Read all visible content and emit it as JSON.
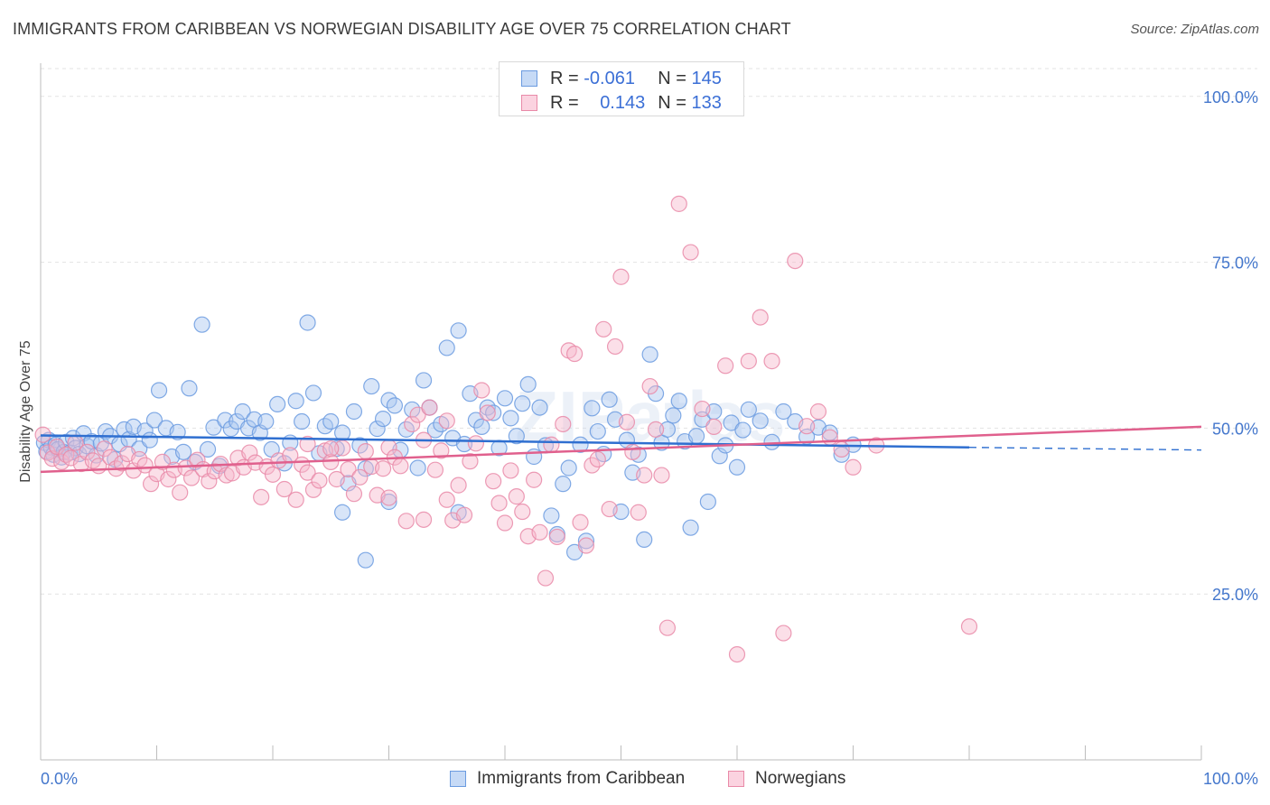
{
  "title": "IMMIGRANTS FROM CARIBBEAN VS NORWEGIAN DISABILITY AGE OVER 75 CORRELATION CHART",
  "source": "Source: ZipAtlas.com",
  "watermark": "ZIPatlas",
  "legend": {
    "r_label": "R =",
    "n_label": "N =",
    "series": [
      {
        "r": "-0.061",
        "n": "145",
        "color": "#a9c6f0",
        "border": "#6b9be0"
      },
      {
        "r": "0.143",
        "n": "133",
        "color": "#f6b9cd",
        "border": "#e98aa8"
      }
    ]
  },
  "bottom_legend": [
    "Immigrants from Caribbean",
    "Norwegians"
  ],
  "chart_data": {
    "type": "scatter",
    "title": "IMMIGRANTS FROM CARIBBEAN VS NORWEGIAN DISABILITY AGE OVER 75 CORRELATION CHART",
    "xlabel": "",
    "ylabel": "Disability Age Over 75",
    "xlim": [
      0,
      100
    ],
    "ylim": [
      0,
      105
    ],
    "x_tick_labels": [
      "0.0%",
      "100.0%"
    ],
    "y_tick_labels": [
      "25.0%",
      "50.0%",
      "75.0%",
      "100.0%"
    ],
    "y_ticks": [
      25,
      50,
      75,
      100
    ],
    "grid": true,
    "legend_position": "top-center",
    "series": [
      {
        "name": "Immigrants from Caribbean",
        "color": "#6b9be0",
        "fill": "#a9c6f0",
        "trend": {
          "x0": 0,
          "y0": 48.9,
          "x1": 80,
          "y1": 47.1,
          "dashed_to": 100,
          "dashed_y": 46.7
        },
        "points": [
          [
            0.3,
            47.8
          ],
          [
            0.5,
            46.5
          ],
          [
            0.7,
            48.2
          ],
          [
            0.9,
            47.1
          ],
          [
            1.1,
            46.0
          ],
          [
            1.3,
            47.5
          ],
          [
            1.5,
            46.8
          ],
          [
            1.8,
            45.6
          ],
          [
            2.0,
            46.4
          ],
          [
            2.2,
            47.9
          ],
          [
            2.5,
            46.3
          ],
          [
            2.8,
            48.5
          ],
          [
            3.0,
            47.0
          ],
          [
            3.3,
            46.1
          ],
          [
            3.7,
            49.2
          ],
          [
            4.0,
            47.3
          ],
          [
            4.4,
            48.0
          ],
          [
            4.8,
            45.9
          ],
          [
            5.2,
            47.7
          ],
          [
            5.6,
            49.5
          ],
          [
            6.0,
            48.8
          ],
          [
            6.4,
            45.3
          ],
          [
            6.8,
            47.6
          ],
          [
            7.2,
            49.8
          ],
          [
            7.6,
            48.3
          ],
          [
            8.0,
            50.2
          ],
          [
            8.5,
            46.9
          ],
          [
            9.0,
            49.6
          ],
          [
            9.4,
            48.2
          ],
          [
            9.8,
            51.2
          ],
          [
            10.2,
            55.7
          ],
          [
            10.8,
            50.0
          ],
          [
            11.3,
            45.7
          ],
          [
            11.8,
            49.4
          ],
          [
            12.3,
            46.4
          ],
          [
            12.8,
            56.0
          ],
          [
            13.3,
            44.9
          ],
          [
            13.9,
            65.6
          ],
          [
            14.4,
            46.8
          ],
          [
            14.9,
            50.1
          ],
          [
            15.4,
            44.3
          ],
          [
            15.9,
            51.2
          ],
          [
            16.4,
            49.9
          ],
          [
            16.9,
            51.0
          ],
          [
            17.4,
            52.5
          ],
          [
            17.9,
            50.0
          ],
          [
            18.4,
            51.3
          ],
          [
            18.9,
            49.3
          ],
          [
            19.4,
            51.0
          ],
          [
            19.9,
            46.8
          ],
          [
            20.4,
            53.6
          ],
          [
            21.0,
            44.7
          ],
          [
            21.5,
            47.8
          ],
          [
            22.0,
            54.1
          ],
          [
            22.5,
            51.0
          ],
          [
            23.0,
            65.9
          ],
          [
            23.5,
            55.3
          ],
          [
            24.0,
            46.2
          ],
          [
            24.5,
            50.3
          ],
          [
            25.0,
            51.0
          ],
          [
            25.5,
            46.9
          ],
          [
            26.0,
            49.3
          ],
          [
            26.5,
            41.7
          ],
          [
            27.0,
            52.5
          ],
          [
            27.5,
            47.4
          ],
          [
            28.0,
            43.9
          ],
          [
            28.5,
            56.3
          ],
          [
            29.0,
            49.9
          ],
          [
            29.5,
            51.4
          ],
          [
            30.0,
            54.2
          ],
          [
            30.5,
            53.4
          ],
          [
            31.0,
            46.7
          ],
          [
            31.5,
            49.8
          ],
          [
            32.0,
            52.8
          ],
          [
            32.5,
            44.0
          ],
          [
            33.0,
            57.2
          ],
          [
            33.5,
            53.1
          ],
          [
            34.0,
            49.7
          ],
          [
            34.5,
            50.6
          ],
          [
            35.0,
            62.1
          ],
          [
            35.5,
            48.5
          ],
          [
            36.0,
            64.7
          ],
          [
            36.5,
            47.6
          ],
          [
            37.0,
            55.2
          ],
          [
            37.5,
            51.2
          ],
          [
            38.0,
            50.2
          ],
          [
            38.5,
            53.1
          ],
          [
            39.0,
            52.3
          ],
          [
            39.5,
            47.0
          ],
          [
            40.0,
            54.5
          ],
          [
            40.5,
            51.5
          ],
          [
            41.0,
            48.8
          ],
          [
            41.5,
            53.7
          ],
          [
            42.0,
            56.6
          ],
          [
            42.5,
            45.7
          ],
          [
            43.0,
            53.1
          ],
          [
            43.5,
            47.4
          ],
          [
            44.0,
            36.8
          ],
          [
            44.5,
            34.0
          ],
          [
            45.0,
            41.6
          ],
          [
            45.5,
            44.0
          ],
          [
            46.0,
            31.3
          ],
          [
            46.5,
            47.5
          ],
          [
            47.0,
            33.0
          ],
          [
            47.5,
            53.0
          ],
          [
            48.0,
            49.5
          ],
          [
            48.5,
            46.1
          ],
          [
            49.0,
            54.3
          ],
          [
            49.5,
            51.3
          ],
          [
            50.0,
            37.4
          ],
          [
            50.5,
            48.2
          ],
          [
            51.0,
            43.3
          ],
          [
            51.5,
            46.0
          ],
          [
            52.0,
            33.2
          ],
          [
            52.5,
            61.1
          ],
          [
            53.0,
            55.2
          ],
          [
            53.5,
            47.8
          ],
          [
            54.0,
            49.8
          ],
          [
            54.5,
            51.9
          ],
          [
            55.0,
            54.1
          ],
          [
            55.5,
            48.0
          ],
          [
            56.0,
            35.0
          ],
          [
            56.5,
            48.8
          ],
          [
            57.0,
            51.3
          ],
          [
            57.5,
            38.9
          ],
          [
            58.0,
            52.5
          ],
          [
            58.5,
            45.8
          ],
          [
            59.0,
            47.4
          ],
          [
            59.5,
            50.8
          ],
          [
            60.0,
            44.1
          ],
          [
            60.5,
            49.7
          ],
          [
            61.0,
            52.8
          ],
          [
            62.0,
            51.1
          ],
          [
            63.0,
            47.9
          ],
          [
            64.0,
            52.5
          ],
          [
            65.0,
            51.0
          ],
          [
            66.0,
            48.7
          ],
          [
            67.0,
            50.1
          ],
          [
            68.0,
            49.3
          ],
          [
            69.0,
            46.0
          ],
          [
            70.0,
            47.5
          ],
          [
            36.0,
            37.3
          ],
          [
            30.0,
            38.9
          ],
          [
            28.0,
            30.1
          ],
          [
            26.0,
            37.3
          ]
        ]
      },
      {
        "name": "Norwegians",
        "color": "#e98aa8",
        "fill": "#f6b9cd",
        "trend": {
          "x0": 0,
          "y0": 43.4,
          "x1": 100,
          "y1": 50.2
        },
        "points": [
          [
            0.2,
            49.0
          ],
          [
            0.6,
            46.3
          ],
          [
            1.0,
            45.4
          ],
          [
            1.4,
            47.2
          ],
          [
            1.8,
            44.9
          ],
          [
            2.2,
            46.0
          ],
          [
            2.6,
            45.5
          ],
          [
            3.0,
            47.8
          ],
          [
            3.5,
            44.6
          ],
          [
            4.0,
            46.4
          ],
          [
            4.5,
            45.1
          ],
          [
            5.0,
            44.3
          ],
          [
            5.5,
            46.9
          ],
          [
            6.0,
            45.6
          ],
          [
            6.5,
            43.9
          ],
          [
            7.0,
            44.7
          ],
          [
            7.5,
            46.1
          ],
          [
            8.0,
            43.6
          ],
          [
            8.5,
            45.3
          ],
          [
            9.0,
            44.4
          ],
          [
            9.5,
            41.6
          ],
          [
            10.0,
            43.1
          ],
          [
            10.5,
            44.9
          ],
          [
            11.0,
            42.3
          ],
          [
            11.5,
            43.7
          ],
          [
            12.0,
            40.3
          ],
          [
            12.5,
            44.0
          ],
          [
            13.0,
            42.5
          ],
          [
            13.5,
            45.2
          ],
          [
            14.0,
            43.8
          ],
          [
            14.5,
            42.0
          ],
          [
            15.0,
            43.5
          ],
          [
            15.5,
            44.6
          ],
          [
            16.0,
            42.9
          ],
          [
            16.5,
            43.2
          ],
          [
            17.0,
            45.5
          ],
          [
            17.5,
            44.1
          ],
          [
            18.0,
            46.3
          ],
          [
            18.5,
            44.8
          ],
          [
            19.0,
            39.6
          ],
          [
            19.5,
            44.2
          ],
          [
            20.0,
            43.0
          ],
          [
            20.5,
            45.1
          ],
          [
            21.0,
            40.8
          ],
          [
            21.5,
            45.9
          ],
          [
            22.0,
            39.2
          ],
          [
            22.5,
            44.5
          ],
          [
            23.0,
            43.3
          ],
          [
            23.5,
            40.7
          ],
          [
            24.0,
            42.1
          ],
          [
            24.5,
            46.6
          ],
          [
            25.0,
            44.9
          ],
          [
            25.5,
            42.3
          ],
          [
            26.0,
            47.0
          ],
          [
            26.5,
            43.8
          ],
          [
            27.0,
            40.1
          ],
          [
            27.5,
            42.6
          ],
          [
            28.0,
            46.5
          ],
          [
            28.5,
            44.2
          ],
          [
            29.0,
            39.9
          ],
          [
            29.5,
            43.9
          ],
          [
            30.0,
            47.1
          ],
          [
            30.5,
            45.6
          ],
          [
            31.0,
            44.3
          ],
          [
            31.5,
            36.0
          ],
          [
            32.0,
            50.6
          ],
          [
            32.5,
            52.0
          ],
          [
            33.0,
            48.2
          ],
          [
            33.5,
            53.1
          ],
          [
            34.0,
            43.7
          ],
          [
            34.5,
            46.6
          ],
          [
            35.0,
            39.2
          ],
          [
            35.5,
            36.1
          ],
          [
            36.0,
            41.4
          ],
          [
            36.5,
            36.9
          ],
          [
            37.0,
            45.0
          ],
          [
            37.5,
            47.7
          ],
          [
            38.0,
            55.7
          ],
          [
            38.5,
            52.3
          ],
          [
            39.0,
            42.0
          ],
          [
            39.5,
            38.7
          ],
          [
            40.0,
            35.7
          ],
          [
            40.5,
            43.6
          ],
          [
            41.0,
            39.7
          ],
          [
            41.5,
            37.4
          ],
          [
            42.0,
            33.7
          ],
          [
            42.5,
            42.2
          ],
          [
            43.0,
            34.3
          ],
          [
            43.5,
            27.4
          ],
          [
            44.0,
            47.5
          ],
          [
            44.5,
            33.6
          ],
          [
            45.0,
            50.6
          ],
          [
            45.5,
            61.7
          ],
          [
            46.0,
            61.2
          ],
          [
            46.5,
            35.8
          ],
          [
            47.0,
            32.3
          ],
          [
            47.5,
            44.4
          ],
          [
            48.0,
            45.3
          ],
          [
            48.5,
            64.9
          ],
          [
            49.0,
            37.8
          ],
          [
            49.5,
            62.3
          ],
          [
            50.0,
            72.8
          ],
          [
            50.5,
            50.9
          ],
          [
            51.0,
            46.4
          ],
          [
            51.5,
            37.3
          ],
          [
            52.0,
            42.9
          ],
          [
            52.5,
            56.3
          ],
          [
            53.0,
            49.8
          ],
          [
            53.5,
            42.9
          ],
          [
            54.0,
            19.9
          ],
          [
            55.0,
            83.8
          ],
          [
            56.0,
            76.5
          ],
          [
            57.0,
            52.9
          ],
          [
            58.0,
            50.2
          ],
          [
            59.0,
            59.4
          ],
          [
            60.0,
            15.9
          ],
          [
            61.0,
            60.1
          ],
          [
            62.0,
            66.7
          ],
          [
            63.0,
            60.1
          ],
          [
            64.0,
            19.1
          ],
          [
            65.0,
            75.2
          ],
          [
            66.0,
            50.3
          ],
          [
            67.0,
            52.5
          ],
          [
            68.0,
            48.6
          ],
          [
            69.0,
            46.8
          ],
          [
            70.0,
            44.1
          ],
          [
            72.0,
            47.4
          ],
          [
            80.0,
            20.1
          ],
          [
            35.0,
            51.1
          ],
          [
            30.0,
            39.5
          ],
          [
            33.0,
            36.2
          ],
          [
            25.0,
            46.9
          ],
          [
            23.0,
            47.6
          ]
        ]
      }
    ]
  }
}
